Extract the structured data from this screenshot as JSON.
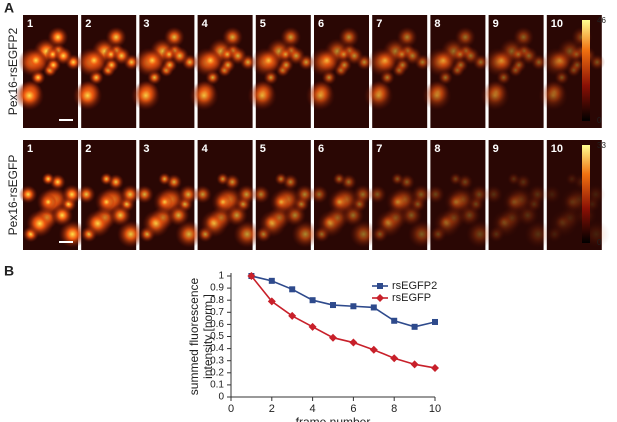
{
  "panel_a": {
    "label": "A",
    "rows": [
      {
        "name": "Pex16-rsEGFP2",
        "frames": [
          "1",
          "2",
          "3",
          "4",
          "5",
          "6",
          "7",
          "8",
          "9",
          "10"
        ],
        "colorbar_ticks": [
          "46",
          "0"
        ]
      },
      {
        "name": "Pex16-rsEGFP",
        "frames": [
          "1",
          "2",
          "3",
          "4",
          "5",
          "6",
          "7",
          "8",
          "9",
          "10"
        ],
        "colorbar_ticks": [
          "33",
          "0"
        ]
      }
    ]
  },
  "panel_b": {
    "label": "B"
  },
  "chart_data": {
    "type": "line",
    "ylabel": [
      "summed fluorescence",
      "intensity [norm.]"
    ],
    "xlabel": "frame number",
    "x": [
      1,
      2,
      3,
      4,
      5,
      6,
      7,
      8,
      9,
      10
    ],
    "xlim": [
      0,
      10
    ],
    "xticks": [
      0,
      2,
      4,
      6,
      8,
      10
    ],
    "ylim": [
      0,
      1
    ],
    "yticks": [
      0,
      0.1,
      0.2,
      0.3,
      0.4,
      0.5,
      0.6,
      0.7,
      0.8,
      0.9,
      1
    ],
    "legend": "upper right",
    "series": [
      {
        "name": "rsEGFP2",
        "color": "#2e4a8c",
        "marker": "square",
        "values": [
          1,
          0.96,
          0.89,
          0.8,
          0.76,
          0.75,
          0.74,
          0.63,
          0.58,
          0.62
        ]
      },
      {
        "name": "rsEGFP",
        "color": "#c8202a",
        "marker": "diamond",
        "values": [
          1,
          0.79,
          0.67,
          0.58,
          0.49,
          0.45,
          0.39,
          0.32,
          0.27,
          0.24
        ]
      }
    ]
  }
}
